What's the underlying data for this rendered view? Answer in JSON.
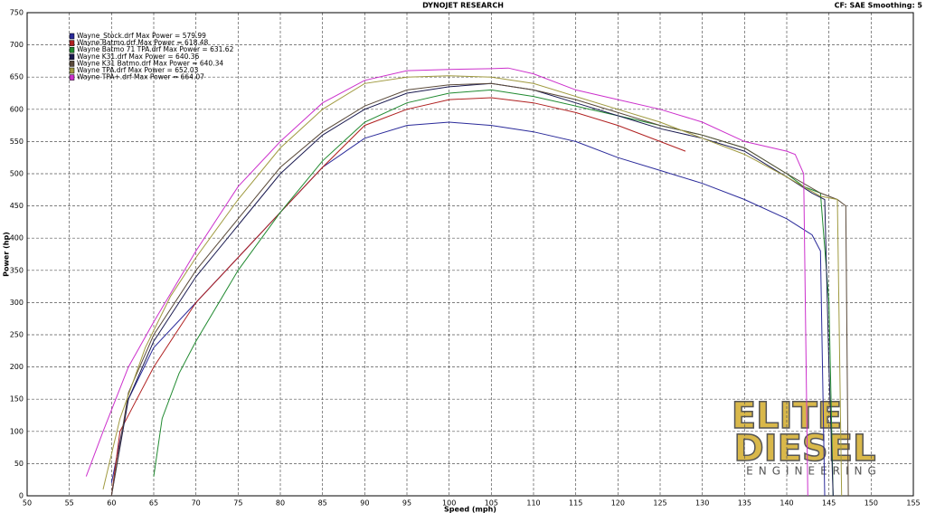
{
  "chart_data": {
    "type": "line",
    "title": "DYNOJET RESEARCH",
    "subtitle": "CF: SAE  Smoothing: 5",
    "x_label": "Speed (mph)",
    "y_label": "Power (hp)",
    "xlim": [
      50,
      155
    ],
    "xticks": [
      50,
      55,
      60,
      65,
      70,
      75,
      80,
      85,
      90,
      95,
      100,
      105,
      110,
      115,
      120,
      125,
      130,
      135,
      140,
      145,
      150,
      155
    ],
    "ylim": [
      0,
      750
    ],
    "yticks": [
      0,
      50,
      100,
      150,
      200,
      250,
      300,
      350,
      400,
      450,
      500,
      550,
      600,
      650,
      700,
      750
    ],
    "grid": true,
    "legend": "top-left",
    "logo": [
      "ELITE",
      "DIESEL",
      "ENGINEERING"
    ],
    "series": [
      {
        "name": "Wayne_Stock.drf Max Power = 579.99",
        "color": "#2a2a9a",
        "x": [
          60,
          62,
          65,
          70,
          75,
          80,
          85,
          90,
          95,
          100,
          105,
          110,
          115,
          120,
          125,
          130,
          135,
          140,
          143,
          144,
          144.5
        ],
        "values": [
          20,
          150,
          230,
          300,
          370,
          440,
          510,
          555,
          575,
          580,
          575,
          565,
          550,
          525,
          505,
          485,
          460,
          430,
          405,
          380,
          0
        ]
      },
      {
        "name": "Wayne Batmo.drf Max Power = 618.48",
        "color": "#b02020",
        "x": [
          60,
          61,
          63,
          65,
          70,
          75,
          80,
          85,
          90,
          95,
          100,
          105,
          110,
          115,
          120,
          125,
          128
        ],
        "values": [
          0,
          100,
          150,
          200,
          300,
          370,
          440,
          510,
          575,
          600,
          615,
          618,
          610,
          595,
          575,
          550,
          535
        ]
      },
      {
        "name": "Wayne Batmo 71 TPA.drf Max Power = 631.62",
        "color": "#208a30",
        "x": [
          65,
          66,
          68,
          70,
          75,
          80,
          85,
          90,
          95,
          100,
          105,
          110,
          115,
          120,
          125,
          130,
          135,
          140,
          142,
          144,
          145,
          145.5
        ],
        "values": [
          30,
          120,
          190,
          240,
          350,
          440,
          520,
          580,
          610,
          625,
          630,
          620,
          605,
          590,
          575,
          560,
          540,
          500,
          480,
          470,
          300,
          0
        ]
      },
      {
        "name": "Wayne K31.drf Max Power = 640.36",
        "color": "#1a1a50",
        "x": [
          60,
          62,
          65,
          68,
          70,
          75,
          80,
          85,
          90,
          95,
          100,
          105,
          110,
          115,
          120,
          125,
          130,
          135,
          140,
          143,
          144.5,
          145,
          145.5
        ],
        "values": [
          0,
          150,
          240,
          300,
          340,
          420,
          500,
          560,
          600,
          625,
          635,
          640,
          630,
          610,
          590,
          570,
          555,
          535,
          495,
          470,
          460,
          200,
          0
        ]
      },
      {
        "name": "Wayne K31 Batmo.drf Max Power = 640.34",
        "color": "#5a4a3a",
        "x": [
          60,
          62,
          65,
          70,
          75,
          80,
          85,
          90,
          95,
          100,
          105,
          110,
          115,
          120,
          125,
          130,
          135,
          140,
          144,
          146,
          147,
          147.3
        ],
        "values": [
          0,
          160,
          250,
          350,
          430,
          510,
          565,
          605,
          630,
          638,
          640,
          630,
          615,
          595,
          575,
          560,
          540,
          500,
          470,
          460,
          450,
          0
        ]
      },
      {
        "name": "Wayne TPA.drf Max Power = 652.03",
        "color": "#a09a40",
        "x": [
          59,
          61,
          64,
          67,
          70,
          75,
          80,
          85,
          90,
          95,
          100,
          105,
          110,
          115,
          120,
          125,
          130,
          135,
          140,
          144,
          146,
          146.5
        ],
        "values": [
          10,
          120,
          230,
          310,
          370,
          460,
          540,
          600,
          640,
          650,
          652,
          650,
          640,
          620,
          600,
          580,
          555,
          530,
          495,
          465,
          460,
          0
        ]
      },
      {
        "name": "Wayne TPA+.drf Max Power = 664.07",
        "color": "#cc30cc",
        "x": [
          57,
          59,
          62,
          65,
          70,
          75,
          80,
          85,
          90,
          95,
          100,
          105,
          107,
          110,
          115,
          120,
          125,
          130,
          135,
          140,
          141,
          142,
          142.5
        ],
        "values": [
          30,
          100,
          200,
          270,
          380,
          480,
          550,
          610,
          645,
          660,
          662,
          663,
          664,
          655,
          630,
          615,
          600,
          580,
          550,
          535,
          530,
          500,
          0
        ]
      }
    ]
  }
}
